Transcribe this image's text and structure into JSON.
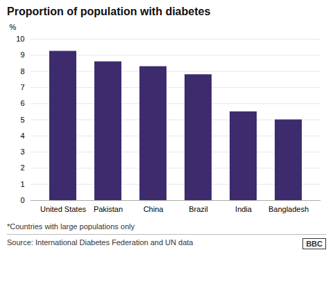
{
  "chart_data": {
    "type": "bar",
    "title": "Proportion of population with diabetes",
    "ylabel": "%",
    "categories": [
      "United States",
      "Pakistan",
      "China",
      "Brazil",
      "India",
      "Bangladesh"
    ],
    "values": [
      9.25,
      8.6,
      8.3,
      7.8,
      5.5,
      5.0
    ],
    "color": "#3d2b6e",
    "ylim": [
      0,
      10
    ],
    "yticks": [
      0,
      1,
      2,
      3,
      4,
      5,
      6,
      7,
      8,
      9,
      10
    ],
    "grid": true,
    "annotations": [
      "*Countries with large populations only",
      "Source: International Diabetes Federation and UN data",
      "BBC"
    ]
  }
}
